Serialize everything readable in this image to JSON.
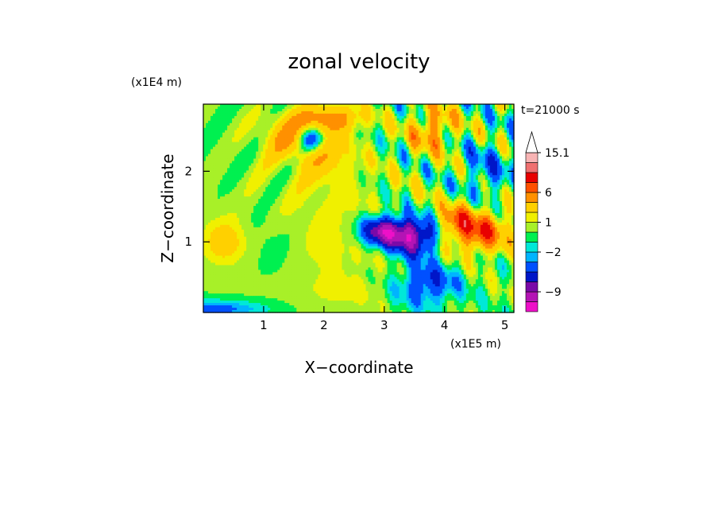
{
  "chart_data": {
    "type": "heatmap",
    "title": "zonal velocity",
    "xlabel": "X−coordinate",
    "ylabel": "Z−coordinate",
    "x_unit": "(x1E5 m)",
    "y_unit": "(x1E4 m)",
    "time_label": "t=21000 s",
    "xlim": [
      0,
      5.15
    ],
    "ylim": [
      0,
      2.95
    ],
    "x_ticks": [
      1,
      2,
      3,
      4,
      5
    ],
    "x_tick_labels": [
      "1",
      "2",
      "3",
      "4",
      "5"
    ],
    "y_ticks": [
      1,
      2
    ],
    "y_tick_labels": [
      "1",
      "2"
    ],
    "colorbar": {
      "levels": [
        -13,
        -11,
        -9,
        -7,
        -5,
        -3,
        -2,
        -1,
        0,
        1,
        2,
        4,
        6,
        8,
        10,
        12,
        15.1
      ],
      "colors": [
        "#ee10c8",
        "#b414b4",
        "#7a0aa8",
        "#0016c8",
        "#0050ff",
        "#00b4ff",
        "#00e8d8",
        "#00f050",
        "#a8f028",
        "#f0f000",
        "#ffd000",
        "#ff9000",
        "#ff5000",
        "#e80000",
        "#f07070",
        "#f8b4b4"
      ],
      "extend_max": true,
      "labels": [
        "15.1",
        "6",
        "1",
        "−2",
        "−9"
      ],
      "label_values": [
        15.1,
        6,
        1,
        -2,
        -9
      ]
    },
    "fields": [
      {
        "x": 1.9,
        "z": 1.15,
        "sx": 1.3,
        "sz": 0.9,
        "a": 1.6
      },
      {
        "x": 1.2,
        "z": 1.0,
        "sx": 0.55,
        "sz": 0.55,
        "a": -1.4
      },
      {
        "x": 0.35,
        "z": 1.0,
        "sx": 0.35,
        "sz": 0.3,
        "a": 3.0
      },
      {
        "x": 2.0,
        "z": 2.2,
        "sx": 0.5,
        "sz": 0.35,
        "a": 2.5
      },
      {
        "x": 1.55,
        "z": 2.5,
        "sx": 0.6,
        "sz": 0.3,
        "a": 4.0
      },
      {
        "x": 1.8,
        "z": 2.45,
        "sx": 0.22,
        "sz": 0.18,
        "a": -8.0
      },
      {
        "x": 2.1,
        "z": 2.75,
        "sx": 0.55,
        "sz": 0.18,
        "a": 4.5
      },
      {
        "x": 3.0,
        "z": 1.15,
        "sx": 0.4,
        "sz": 0.22,
        "a": -10.0
      },
      {
        "x": 3.5,
        "z": 1.05,
        "sx": 0.35,
        "sz": 0.25,
        "a": -9.0
      },
      {
        "x": 4.6,
        "z": 1.15,
        "sx": 0.45,
        "sz": 0.3,
        "a": 7.0
      },
      {
        "x": 4.2,
        "z": 1.3,
        "sx": 0.25,
        "sz": 0.25,
        "a": 4.5
      },
      {
        "x": 3.8,
        "z": 2.6,
        "sx": 0.35,
        "sz": 0.3,
        "a": 5.0
      },
      {
        "x": 2.4,
        "z": 0.3,
        "sx": 0.6,
        "sz": 0.2,
        "a": 1.0
      },
      {
        "x": 0.1,
        "z": 0.05,
        "sx": 0.9,
        "sz": 0.12,
        "a": -4.0
      },
      {
        "x": 3.7,
        "z": 0.4,
        "sx": 0.5,
        "sz": 0.3,
        "a": -5.0
      },
      {
        "x": 4.7,
        "z": 2.0,
        "sx": 0.4,
        "sz": 0.4,
        "a": -3.0
      }
    ],
    "wave_amplitude": 4.5
  }
}
